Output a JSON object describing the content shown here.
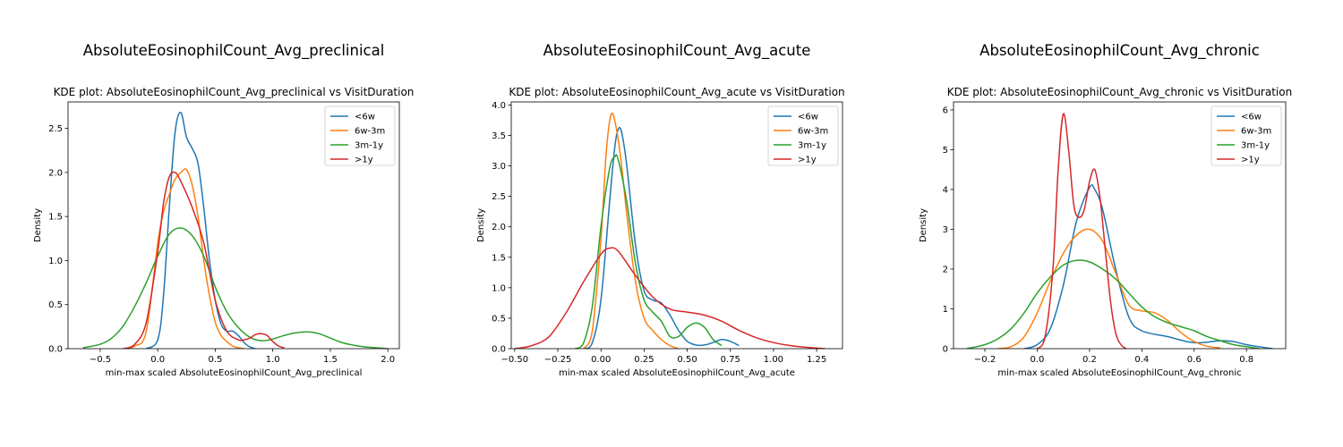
{
  "series_colors": {
    "<6w": "#1f77b4",
    "6w-3m": "#ff7f0e",
    "3m-1y": "#2ca02c",
    ">1y": "#d62728"
  },
  "chart_data": [
    {
      "type": "line",
      "suptitle": "AbsoluteEosinophilCount_Avg_preclinical",
      "title": "KDE plot:  AbsoluteEosinophilCount_Avg_preclinical vs VisitDuration",
      "xlabel": "min-max scaled AbsoluteEosinophilCount_Avg_preclinical",
      "ylabel": "Density",
      "xlim": [
        -0.78,
        2.1
      ],
      "ylim": [
        0,
        2.8
      ],
      "xticks": [
        -0.5,
        0.0,
        0.5,
        1.0,
        1.5,
        2.0
      ],
      "xtick_labels": [
        "−0.5",
        "0.0",
        "0.5",
        "1.0",
        "1.5",
        "2.0"
      ],
      "yticks": [
        0.0,
        0.5,
        1.0,
        1.5,
        2.0,
        2.5
      ],
      "ytick_labels": [
        "0.0",
        "0.5",
        "1.0",
        "1.5",
        "2.0",
        "2.5"
      ],
      "legend": "top-right",
      "series": [
        {
          "name": "<6w",
          "x": [
            -0.1,
            0.0,
            0.05,
            0.1,
            0.15,
            0.2,
            0.25,
            0.3,
            0.35,
            0.4,
            0.45,
            0.5,
            0.55,
            0.6,
            0.65,
            0.7,
            0.75,
            0.8,
            0.85
          ],
          "y": [
            0,
            0.1,
            0.6,
            1.6,
            2.45,
            2.68,
            2.4,
            2.27,
            2.1,
            1.6,
            1.0,
            0.55,
            0.28,
            0.2,
            0.2,
            0.15,
            0.07,
            0.02,
            0
          ]
        },
        {
          "name": "6w-3m",
          "x": [
            -0.3,
            -0.2,
            -0.1,
            0.0,
            0.05,
            0.1,
            0.15,
            0.2,
            0.25,
            0.3,
            0.35,
            0.4,
            0.45,
            0.5,
            0.55,
            0.6,
            0.65,
            0.7,
            0.75
          ],
          "y": [
            0,
            0.03,
            0.2,
            1.2,
            1.55,
            1.75,
            1.92,
            2.0,
            2.03,
            1.85,
            1.5,
            1.0,
            0.6,
            0.3,
            0.15,
            0.08,
            0.03,
            0.01,
            0
          ]
        },
        {
          "name": "3m-1y",
          "x": [
            -0.65,
            -0.5,
            -0.4,
            -0.3,
            -0.2,
            -0.1,
            0.0,
            0.1,
            0.2,
            0.3,
            0.4,
            0.5,
            0.6,
            0.7,
            0.8,
            0.9,
            1.0,
            1.1,
            1.2,
            1.3,
            1.4,
            1.5,
            1.6,
            1.7,
            1.8,
            1.9,
            2.0
          ],
          "y": [
            0.01,
            0.05,
            0.12,
            0.26,
            0.48,
            0.75,
            1.05,
            1.3,
            1.37,
            1.28,
            1.05,
            0.7,
            0.42,
            0.24,
            0.13,
            0.09,
            0.11,
            0.15,
            0.18,
            0.19,
            0.17,
            0.12,
            0.07,
            0.04,
            0.02,
            0.01,
            0
          ]
        },
        {
          "name": ">1y",
          "x": [
            -0.3,
            -0.2,
            -0.1,
            0.0,
            0.05,
            0.1,
            0.15,
            0.2,
            0.3,
            0.4,
            0.5,
            0.6,
            0.7,
            0.75,
            0.8,
            0.85,
            0.9,
            0.95,
            1.0,
            1.05,
            1.1
          ],
          "y": [
            0,
            0.05,
            0.3,
            1.1,
            1.65,
            1.95,
            2.0,
            1.9,
            1.6,
            1.2,
            0.55,
            0.2,
            0.1,
            0.1,
            0.12,
            0.16,
            0.17,
            0.15,
            0.08,
            0.03,
            0.01
          ]
        }
      ]
    },
    {
      "type": "line",
      "suptitle": "AbsoluteEosinophilCount_Avg_acute",
      "title": "KDE plot:  AbsoluteEosinophilCount_Avg_acute vs VisitDuration",
      "xlabel": "min-max scaled AbsoluteEosinophilCount_Avg_acute",
      "ylabel": "Density",
      "xlim": [
        -0.52,
        1.4
      ],
      "ylim": [
        0,
        4.05
      ],
      "xticks": [
        -0.5,
        -0.25,
        0.0,
        0.25,
        0.5,
        0.75,
        1.0,
        1.25
      ],
      "xtick_labels": [
        "−0.50",
        "−0.25",
        "0.00",
        "0.25",
        "0.50",
        "0.75",
        "1.00",
        "1.25"
      ],
      "yticks": [
        0.0,
        0.5,
        1.0,
        1.5,
        2.0,
        2.5,
        3.0,
        3.5,
        4.0
      ],
      "ytick_labels": [
        "0.0",
        "0.5",
        "1.0",
        "1.5",
        "2.0",
        "2.5",
        "3.0",
        "3.5",
        "4.0"
      ],
      "legend": "top-right",
      "series": [
        {
          "name": "<6w",
          "x": [
            -0.1,
            -0.05,
            0.0,
            0.05,
            0.08,
            0.1,
            0.12,
            0.15,
            0.2,
            0.25,
            0.3,
            0.35,
            0.4,
            0.45,
            0.5,
            0.55,
            0.6,
            0.65,
            0.7,
            0.75,
            0.8
          ],
          "y": [
            0,
            0.1,
            0.8,
            2.4,
            3.3,
            3.6,
            3.55,
            3.0,
            1.7,
            0.95,
            0.8,
            0.75,
            0.55,
            0.3,
            0.12,
            0.06,
            0.06,
            0.1,
            0.15,
            0.12,
            0.05
          ]
        },
        {
          "name": "6w-3m",
          "x": [
            -0.1,
            -0.05,
            0.0,
            0.03,
            0.06,
            0.09,
            0.12,
            0.15,
            0.2,
            0.25,
            0.3,
            0.35,
            0.4,
            0.45
          ],
          "y": [
            0,
            0.3,
            1.8,
            3.2,
            3.85,
            3.6,
            3.0,
            2.2,
            1.1,
            0.5,
            0.3,
            0.15,
            0.05,
            0
          ]
        },
        {
          "name": "3m-1y",
          "x": [
            -0.15,
            -0.1,
            -0.05,
            0.0,
            0.05,
            0.08,
            0.1,
            0.15,
            0.2,
            0.25,
            0.3,
            0.35,
            0.4,
            0.45,
            0.5,
            0.55,
            0.6,
            0.65,
            0.7
          ],
          "y": [
            0,
            0.1,
            0.7,
            2.0,
            2.95,
            3.15,
            3.1,
            2.4,
            1.4,
            0.8,
            0.6,
            0.45,
            0.2,
            0.2,
            0.35,
            0.42,
            0.35,
            0.15,
            0.05
          ]
        },
        {
          "name": ">1y",
          "x": [
            -0.5,
            -0.4,
            -0.3,
            -0.2,
            -0.1,
            0.0,
            0.05,
            0.1,
            0.2,
            0.3,
            0.4,
            0.5,
            0.6,
            0.7,
            0.8,
            0.9,
            1.0,
            1.1,
            1.2,
            1.3
          ],
          "y": [
            0,
            0.05,
            0.2,
            0.6,
            1.1,
            1.55,
            1.65,
            1.6,
            1.2,
            0.85,
            0.65,
            0.6,
            0.55,
            0.45,
            0.3,
            0.18,
            0.1,
            0.05,
            0.02,
            0
          ]
        }
      ]
    },
    {
      "type": "line",
      "suptitle": "AbsoluteEosinophilCount_Avg_chronic",
      "title": "KDE plot:  AbsoluteEosinophilCount_Avg_chronic vs VisitDuration",
      "xlabel": "min-max scaled AbsoluteEosinophilCount_Avg_chronic",
      "ylabel": "Density",
      "xlim": [
        -0.32,
        0.95
      ],
      "ylim": [
        0,
        6.2
      ],
      "xticks": [
        -0.2,
        0.0,
        0.2,
        0.4,
        0.6,
        0.8
      ],
      "xtick_labels": [
        "−0.2",
        "0.0",
        "0.2",
        "0.4",
        "0.6",
        "0.8"
      ],
      "yticks": [
        0,
        1,
        2,
        3,
        4,
        5,
        6
      ],
      "ytick_labels": [
        "0",
        "1",
        "2",
        "3",
        "4",
        "5",
        "6"
      ],
      "legend": "top-right",
      "series": [
        {
          "name": "<6w",
          "x": [
            -0.05,
            0.0,
            0.05,
            0.1,
            0.15,
            0.2,
            0.22,
            0.25,
            0.3,
            0.35,
            0.4,
            0.5,
            0.6,
            0.7,
            0.75,
            0.8,
            0.9
          ],
          "y": [
            0,
            0.1,
            0.5,
            1.6,
            3.2,
            4.05,
            4.0,
            3.5,
            2.0,
            0.8,
            0.45,
            0.3,
            0.15,
            0.2,
            0.18,
            0.1,
            0
          ]
        },
        {
          "name": "6w-3m",
          "x": [
            -0.15,
            -0.1,
            -0.05,
            0.0,
            0.05,
            0.1,
            0.15,
            0.2,
            0.25,
            0.3,
            0.35,
            0.4,
            0.45,
            0.5,
            0.55,
            0.6,
            0.65,
            0.7
          ],
          "y": [
            0,
            0.05,
            0.3,
            0.9,
            1.7,
            2.4,
            2.85,
            3.0,
            2.7,
            1.9,
            1.1,
            0.95,
            0.9,
            0.7,
            0.4,
            0.18,
            0.06,
            0.02
          ]
        },
        {
          "name": "3m-1y",
          "x": [
            -0.27,
            -0.2,
            -0.15,
            -0.1,
            -0.05,
            0.0,
            0.05,
            0.1,
            0.15,
            0.2,
            0.25,
            0.3,
            0.35,
            0.4,
            0.45,
            0.5,
            0.55,
            0.6,
            0.65,
            0.7,
            0.75,
            0.8,
            0.85
          ],
          "y": [
            0,
            0.1,
            0.25,
            0.5,
            0.9,
            1.4,
            1.8,
            2.1,
            2.22,
            2.18,
            2.0,
            1.75,
            1.4,
            1.05,
            0.8,
            0.65,
            0.55,
            0.45,
            0.3,
            0.2,
            0.1,
            0.05,
            0
          ]
        },
        {
          "name": ">1y",
          "x": [
            0.0,
            0.03,
            0.06,
            0.08,
            0.1,
            0.12,
            0.14,
            0.16,
            0.18,
            0.2,
            0.22,
            0.24,
            0.26,
            0.28,
            0.3,
            0.32,
            0.34
          ],
          "y": [
            0,
            0.3,
            2.0,
            4.5,
            5.9,
            5.0,
            3.6,
            3.3,
            3.5,
            4.2,
            4.5,
            3.8,
            2.5,
            1.2,
            0.4,
            0.1,
            0
          ]
        }
      ]
    }
  ]
}
